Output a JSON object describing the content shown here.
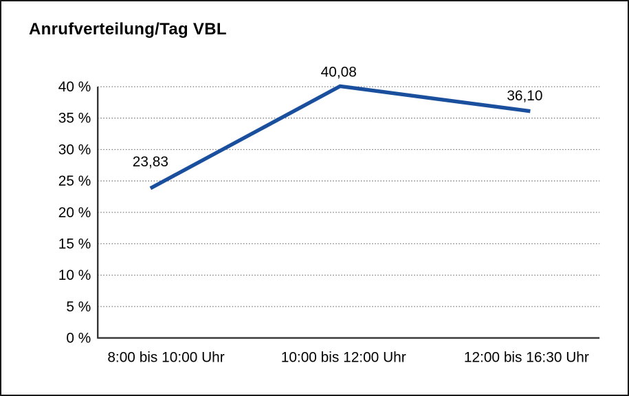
{
  "title": "Anrufverteilung/Tag VBL",
  "chart_data": {
    "type": "line",
    "title": "Anrufverteilung/Tag VBL",
    "categories": [
      "8:00 bis 10:00 Uhr",
      "10:00 bis 12:00 Uhr",
      "12:00 bis 16:30 Uhr"
    ],
    "series": [
      {
        "name": "Anrufverteilung/Tag VBL",
        "values": [
          23.83,
          40.08,
          36.1
        ],
        "point_labels": [
          "23,83",
          "40,08",
          "36,10"
        ],
        "color": "#1A4F9D"
      }
    ],
    "xlabel": "",
    "ylabel": "",
    "ylim": [
      0,
      40
    ],
    "y_ticks": [
      0,
      5,
      10,
      15,
      20,
      25,
      30,
      35,
      40
    ],
    "y_tick_labels": [
      "0 %",
      "5 %",
      "10 %",
      "15 %",
      "20 %",
      "25 %",
      "30 %",
      "35 %",
      "40 %"
    ],
    "grid": "horizontal dotted",
    "legend": "none"
  },
  "colors": {
    "line": "#1A4F9D",
    "grid": "#777777",
    "axis": "#333333",
    "text": "#000000",
    "frame_border": "#1A1A1A",
    "background": "#FFFFFF"
  }
}
